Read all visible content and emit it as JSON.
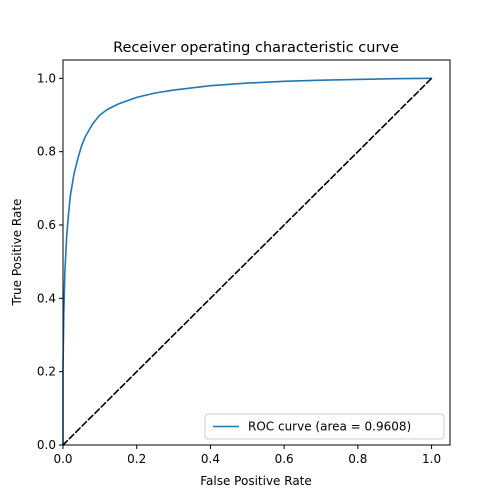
{
  "chart_data": {
    "type": "line",
    "title": "Receiver operating characteristic curve",
    "xlabel": "False Positive Rate",
    "ylabel": "True Positive Rate",
    "xlim": [
      0.0,
      1.05
    ],
    "ylim": [
      0.0,
      1.05
    ],
    "xticks": [
      0.0,
      0.2,
      0.4,
      0.6,
      0.8,
      1.0
    ],
    "yticks": [
      0.0,
      0.2,
      0.4,
      0.6,
      0.8,
      1.0
    ],
    "xtick_labels": [
      "0.0",
      "0.2",
      "0.4",
      "0.6",
      "0.8",
      "1.0"
    ],
    "ytick_labels": [
      "0.0",
      "0.2",
      "0.4",
      "0.6",
      "0.8",
      "1.0"
    ],
    "grid": false,
    "legend_position": "lower-right",
    "series": [
      {
        "name": "ROC curve (area = 0.9608)",
        "color": "#1f77b4",
        "style": "solid",
        "x": [
          0.0,
          0.0,
          0.002,
          0.005,
          0.01,
          0.015,
          0.02,
          0.03,
          0.04,
          0.05,
          0.06,
          0.08,
          0.1,
          0.12,
          0.15,
          0.2,
          0.25,
          0.3,
          0.4,
          0.5,
          0.6,
          0.7,
          0.8,
          0.9,
          1.0
        ],
        "y": [
          0.0,
          0.2,
          0.35,
          0.47,
          0.57,
          0.63,
          0.68,
          0.74,
          0.78,
          0.815,
          0.84,
          0.875,
          0.9,
          0.915,
          0.93,
          0.948,
          0.96,
          0.968,
          0.98,
          0.987,
          0.992,
          0.995,
          0.997,
          0.999,
          1.0
        ]
      },
      {
        "color": "#000000",
        "style": "dashed",
        "x": [
          0.0,
          1.0
        ],
        "y": [
          0.0,
          1.0
        ]
      }
    ]
  }
}
